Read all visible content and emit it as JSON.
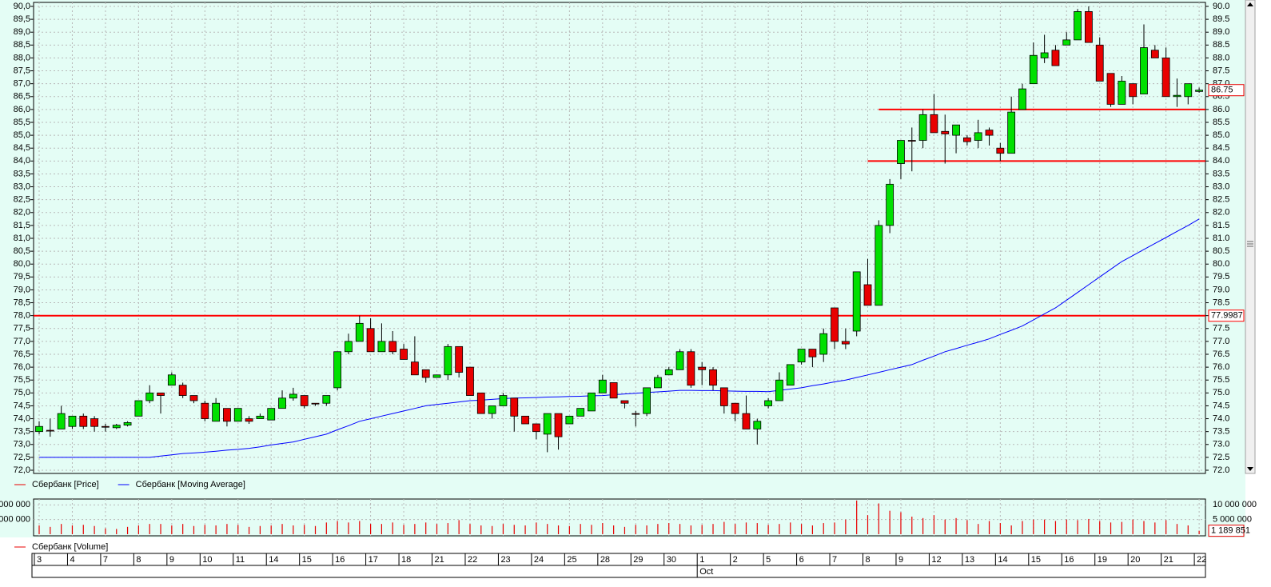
{
  "chart_data": {
    "type": "candlestick",
    "categories": [
      "3",
      null,
      null,
      "4",
      null,
      null,
      "7",
      null,
      null,
      "8",
      null,
      null,
      "9",
      null,
      null,
      "10",
      null,
      null,
      "11",
      null,
      null,
      "14",
      null,
      null,
      "15",
      null,
      null,
      "16",
      null,
      null,
      "17",
      null,
      null,
      "18",
      null,
      null,
      "21",
      null,
      null,
      "22",
      null,
      null,
      "23",
      null,
      null,
      "24",
      null,
      null,
      "25",
      null,
      null,
      "28",
      null,
      null,
      "29",
      null,
      null,
      "30",
      null,
      null,
      "1",
      null,
      null,
      "2",
      null,
      null,
      "5",
      null,
      null,
      "6",
      null,
      null,
      "7",
      null,
      null,
      "8",
      null,
      null,
      "9",
      null,
      null,
      "12",
      null,
      null,
      "13",
      null,
      null,
      "14",
      null,
      null,
      "15",
      null,
      null,
      "16",
      null,
      null,
      "19",
      null,
      null,
      "20",
      null,
      null,
      "21",
      null,
      null,
      "22"
    ],
    "month_label": "Oct",
    "up_color": "#00e000",
    "down_color": "#e80000",
    "grid": true,
    "series": [
      {
        "name": "Сбербанк [Price]",
        "color": "#e80000",
        "open": [
          73.5,
          73.55,
          73.6,
          73.7,
          74.1,
          74.0,
          73.7,
          73.65,
          73.75,
          74.1,
          74.7,
          75.0,
          75.3,
          75.3,
          74.9,
          74.6,
          73.9,
          74.4,
          73.9,
          74.0,
          74.0,
          73.95,
          74.4,
          74.8,
          74.9,
          74.6,
          74.6,
          75.2,
          76.6,
          77.0,
          77.5,
          76.6,
          77.0,
          76.7,
          76.2,
          75.9,
          75.6,
          75.7,
          76.8,
          76.0,
          75.0,
          74.2,
          74.5,
          74.8,
          74.1,
          73.8,
          73.4,
          74.2,
          73.8,
          74.1,
          74.3,
          75.0,
          75.4,
          74.7,
          74.2,
          74.2,
          75.2,
          75.7,
          75.9,
          76.6,
          76.0,
          75.9,
          75.2,
          74.6,
          74.2,
          73.6,
          74.5,
          74.7,
          75.3,
          76.2,
          76.7,
          76.5,
          78.3,
          77.0,
          77.4,
          79.2,
          78.4,
          81.5,
          83.9,
          84.8,
          84.8,
          85.8,
          85.15,
          85.0,
          84.9,
          84.8,
          85.2,
          84.5,
          84.3,
          86.0,
          87.0,
          88.0,
          88.3,
          88.5,
          88.7,
          89.8,
          88.5,
          87.4,
          86.2,
          87.0,
          86.6,
          88.3,
          88.0,
          86.5,
          86.5,
          86.7
        ],
        "high": [
          73.9,
          74.0,
          74.5,
          74.1,
          74.2,
          74.1,
          73.8,
          73.8,
          73.9,
          74.7,
          75.3,
          75.0,
          75.8,
          75.4,
          74.9,
          74.7,
          74.8,
          74.4,
          74.4,
          74.1,
          74.2,
          74.4,
          75.1,
          75.2,
          74.9,
          74.6,
          74.9,
          76.6,
          77.3,
          78.0,
          77.9,
          77.7,
          77.4,
          76.9,
          77.2,
          75.9,
          75.7,
          76.9,
          76.8,
          76.0,
          75.0,
          74.5,
          75.0,
          74.8,
          74.1,
          73.8,
          74.2,
          74.2,
          74.1,
          74.4,
          75.0,
          75.7,
          75.4,
          74.7,
          74.3,
          75.2,
          75.7,
          76.0,
          76.7,
          76.7,
          76.2,
          76.0,
          75.2,
          74.6,
          74.9,
          74.0,
          74.8,
          75.8,
          76.1,
          76.7,
          76.7,
          77.5,
          78.3,
          77.5,
          79.7,
          80.2,
          81.7,
          83.3,
          84.8,
          85.3,
          86.0,
          86.6,
          85.8,
          85.4,
          85.0,
          85.6,
          85.3,
          84.7,
          86.5,
          87.0,
          88.6,
          88.9,
          88.5,
          89.0,
          89.9,
          90.0,
          88.8,
          87.4,
          87.3,
          87.0,
          89.3,
          88.5,
          88.4,
          87.2,
          87.0,
          86.85
        ],
        "low": [
          73.4,
          73.3,
          73.6,
          73.6,
          73.6,
          73.5,
          73.5,
          73.6,
          73.7,
          74.1,
          74.6,
          74.2,
          75.3,
          74.8,
          74.6,
          73.9,
          73.9,
          73.7,
          73.9,
          73.8,
          74.0,
          73.95,
          74.4,
          74.7,
          74.4,
          74.5,
          74.5,
          75.1,
          76.5,
          77.0,
          76.6,
          76.6,
          76.5,
          76.3,
          75.7,
          75.4,
          75.6,
          75.5,
          75.6,
          74.9,
          74.2,
          74.0,
          74.5,
          73.5,
          73.8,
          73.2,
          72.7,
          72.8,
          73.8,
          74.1,
          74.3,
          75.0,
          74.8,
          74.4,
          73.7,
          74.1,
          75.2,
          75.7,
          75.9,
          75.2,
          75.3,
          75.1,
          74.2,
          73.9,
          73.6,
          73.0,
          74.4,
          74.7,
          75.3,
          76.1,
          76.0,
          76.2,
          76.7,
          76.7,
          77.2,
          78.4,
          78.4,
          81.2,
          83.3,
          83.6,
          84.5,
          85.1,
          83.9,
          84.3,
          84.6,
          84.5,
          84.6,
          84.0,
          84.3,
          86.0,
          87.0,
          87.8,
          87.7,
          88.5,
          88.7,
          88.6,
          87.1,
          86.1,
          86.2,
          86.2,
          86.6,
          88.0,
          86.5,
          86.1,
          86.2,
          86.65
        ],
        "close": [
          73.7,
          73.55,
          74.2,
          74.1,
          73.7,
          73.7,
          73.7,
          73.75,
          73.85,
          74.7,
          75.0,
          74.9,
          75.7,
          74.9,
          74.7,
          74.0,
          74.6,
          73.9,
          74.4,
          73.9,
          74.1,
          74.4,
          74.8,
          74.95,
          74.5,
          74.6,
          74.9,
          76.6,
          77.0,
          77.7,
          76.6,
          77.0,
          76.6,
          76.3,
          75.7,
          75.6,
          75.7,
          76.8,
          75.8,
          74.9,
          74.2,
          74.5,
          74.9,
          74.1,
          73.8,
          73.5,
          74.2,
          73.3,
          74.1,
          74.4,
          75.0,
          75.5,
          74.8,
          74.6,
          74.2,
          75.2,
          75.6,
          75.9,
          76.6,
          75.3,
          75.9,
          75.3,
          74.5,
          74.2,
          73.6,
          73.9,
          74.7,
          75.5,
          76.1,
          76.7,
          76.4,
          77.3,
          77.0,
          76.9,
          79.7,
          78.4,
          81.5,
          83.1,
          84.8,
          84.8,
          85.8,
          85.1,
          85.05,
          85.4,
          84.75,
          85.1,
          85.0,
          84.3,
          85.9,
          86.8,
          88.1,
          88.2,
          87.7,
          88.7,
          89.8,
          88.6,
          87.1,
          86.2,
          87.1,
          86.5,
          88.4,
          88.0,
          86.5,
          86.55,
          87.0,
          86.75
        ]
      },
      {
        "name": "Сбербанк [Moving Average]",
        "color": "#0000ff",
        "values": [
          72.5,
          72.5,
          72.5,
          72.5,
          72.5,
          72.5,
          72.5,
          72.5,
          72.5,
          72.5,
          72.5,
          72.55,
          72.6,
          72.65,
          72.67,
          72.7,
          72.74,
          72.78,
          72.81,
          72.85,
          72.91,
          72.98,
          73.04,
          73.1,
          73.2,
          73.3,
          73.4,
          73.57,
          73.73,
          73.9,
          74.0,
          74.1,
          74.2,
          74.3,
          74.4,
          74.5,
          74.55,
          74.6,
          74.65,
          74.7,
          74.72,
          74.75,
          74.78,
          74.8,
          74.81,
          74.82,
          74.84,
          74.85,
          74.86,
          74.87,
          74.89,
          74.9,
          74.93,
          74.96,
          74.99,
          75.02,
          75.04,
          75.07,
          75.1,
          75.1,
          75.09,
          75.09,
          75.08,
          75.07,
          75.06,
          75.06,
          75.05,
          75.1,
          75.15,
          75.2,
          75.28,
          75.35,
          75.43,
          75.5,
          75.6,
          75.7,
          75.8,
          75.9,
          76.0,
          76.1,
          76.27,
          76.43,
          76.6,
          76.72,
          76.85,
          76.97,
          77.1,
          77.27,
          77.43,
          77.6,
          77.83,
          78.07,
          78.3,
          78.6,
          78.9,
          79.2,
          79.5,
          79.8,
          80.1,
          80.33,
          80.57,
          80.8,
          81.03,
          81.27,
          81.5,
          81.75
        ]
      }
    ],
    "last_price": 86.75,
    "levels": [
      77.9987,
      84,
      86
    ],
    "level_color": "#ff0000",
    "ylim": [
      72,
      90
    ],
    "yticks": [
      {
        "value": 72,
        "label": "72.0"
      },
      72.5,
      {
        "value": 73,
        "label": "73.0"
      },
      73.5,
      {
        "value": 74,
        "label": "74.0"
      },
      74.5,
      {
        "value": 75,
        "label": "75.0"
      },
      75.5,
      {
        "value": 76,
        "label": "76.0"
      },
      76.5,
      {
        "value": 77,
        "label": "77.0"
      },
      77.5,
      {
        "value": 78,
        "label": "78.0"
      },
      78.5,
      {
        "value": 79,
        "label": "79.0"
      },
      79.5,
      {
        "value": 80,
        "label": "80.0"
      },
      80.5,
      {
        "value": 81,
        "label": "81.0"
      },
      81.5,
      {
        "value": 82,
        "label": "82.0"
      },
      82.5,
      {
        "value": 83,
        "label": "83.0"
      },
      83.5,
      {
        "value": 84,
        "label": "84.0"
      },
      84.5,
      {
        "value": 85,
        "label": "85.0"
      },
      85.5,
      {
        "value": 86,
        "label": "86.0"
      },
      86.5,
      {
        "value": 87,
        "label": "87.0"
      },
      87.5,
      {
        "value": 88,
        "label": "88.0"
      },
      88.5,
      {
        "value": 89,
        "label": "89.0"
      },
      89.5,
      {
        "value": 90,
        "label": "90.0"
      }
    ],
    "yticks_left": [
      {
        "value": 72,
        "label": "72,0"
      },
      {
        "value": 72.5,
        "label": "72,5"
      },
      {
        "value": 73,
        "label": "73,0"
      },
      {
        "value": 73.5,
        "label": "73,5"
      },
      {
        "value": 74,
        "label": "74,0"
      },
      {
        "value": 74.5,
        "label": "74,5"
      },
      {
        "value": 75,
        "label": "75,0"
      },
      {
        "value": 75.5,
        "label": "75,5"
      },
      {
        "value": 76,
        "label": "76,0"
      },
      {
        "value": 76.5,
        "label": "76,5"
      },
      {
        "value": 77,
        "label": "77,0"
      },
      {
        "value": 77.5,
        "label": "77,5"
      },
      {
        "value": 78,
        "label": "78,0"
      },
      {
        "value": 78.5,
        "label": "78,5"
      },
      {
        "value": 79,
        "label": "79,0"
      },
      {
        "value": 79.5,
        "label": "79,5"
      },
      {
        "value": 80,
        "label": "80,0"
      },
      {
        "value": 80.5,
        "label": "80,5"
      },
      {
        "value": 81,
        "label": "81,0"
      },
      {
        "value": 81.5,
        "label": "81,5"
      },
      {
        "value": 82,
        "label": "82,0"
      },
      {
        "value": 82.5,
        "label": "82,5"
      },
      {
        "value": 83,
        "label": "83,0"
      },
      {
        "value": 83.5,
        "label": "83,5"
      },
      {
        "value": 84,
        "label": "84,0"
      },
      {
        "value": 84.5,
        "label": "84,5"
      },
      {
        "value": 85,
        "label": "85,0"
      },
      {
        "value": 85.5,
        "label": "85,5"
      },
      {
        "value": 86,
        "label": "86,0"
      },
      {
        "value": 86.5,
        "label": "86,5"
      },
      {
        "value": 87,
        "label": "87,0"
      },
      {
        "value": 87.5,
        "label": "87,5"
      },
      {
        "value": 88,
        "label": "88,0"
      },
      {
        "value": 88.5,
        "label": "88,5"
      },
      {
        "value": 89,
        "label": "89,0"
      },
      {
        "value": 89.5,
        "label": "89,5"
      },
      {
        "value": 90,
        "label": "90,0"
      }
    ],
    "volume": {
      "series": [
        {
          "name": "Сбербанк [Volume]",
          "color": "#e80000",
          "values": [
            3000000,
            2500000,
            3500000,
            3000000,
            3200000,
            2800000,
            2000000,
            1800000,
            2500000,
            3000000,
            3500000,
            3500000,
            3000000,
            3500000,
            2800000,
            3200000,
            3000000,
            3500000,
            3200000,
            2500000,
            2800000,
            3000000,
            3500000,
            3000000,
            3200000,
            2800000,
            4000000,
            4500000,
            4000000,
            4500000,
            3500000,
            3500000,
            4000000,
            3200000,
            3500000,
            4000000,
            3500000,
            3800000,
            4800000,
            3500000,
            3000000,
            2800000,
            3500000,
            3200000,
            3000000,
            4000000,
            3500000,
            3000000,
            2800000,
            3500000,
            3200000,
            3800000,
            3000000,
            2500000,
            3200000,
            3000000,
            3500000,
            3800000,
            3500000,
            3000000,
            3200000,
            3500000,
            4200000,
            3500000,
            4000000,
            3800000,
            3200000,
            3500000,
            4000000,
            3500000,
            3000000,
            3800000,
            4000000,
            5000000,
            11500000,
            6500000,
            10500000,
            8000000,
            7500000,
            6000000,
            5500000,
            6500000,
            5000000,
            5500000,
            4800000,
            3500000,
            4500000,
            3800000,
            3000000,
            4500000,
            5000000,
            5000000,
            4500000,
            5000000,
            4800000,
            5200000,
            4500000,
            4000000,
            4200000,
            5000000,
            4500000,
            4000000,
            4800000,
            3500000,
            3000000,
            1189851
          ]
        }
      ],
      "last_value": {
        "value": 1189851,
        "label": "1 189 851"
      },
      "ylim": [
        0,
        12000000
      ],
      "yticks": [
        {
          "value": 5000000,
          "label": "5 000 000"
        },
        {
          "value": 10000000,
          "label": "10 000 000"
        }
      ]
    }
  }
}
